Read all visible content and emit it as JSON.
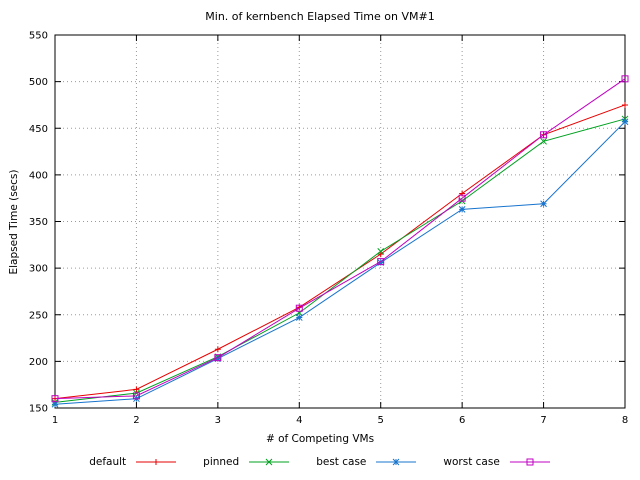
{
  "chart_data": {
    "type": "line",
    "title": "Min. of kernbench Elapsed Time on VM#1",
    "xlabel": "# of Competing VMs",
    "ylabel": "Elapsed Time (secs)",
    "xlim": [
      1,
      8
    ],
    "ylim": [
      150,
      550
    ],
    "xticks": [
      1,
      2,
      3,
      4,
      5,
      6,
      7,
      8
    ],
    "yticks": [
      150,
      200,
      250,
      300,
      350,
      400,
      450,
      500,
      550
    ],
    "grid": true,
    "legend_position": "bottom",
    "x": [
      1,
      2,
      3,
      4,
      5,
      6,
      7,
      8
    ],
    "series": [
      {
        "name": "default",
        "color": "#e60000",
        "marker": "plus",
        "values": [
          160,
          170,
          213,
          258,
          315,
          380,
          443,
          475
        ]
      },
      {
        "name": "pinned",
        "color": "#00a020",
        "marker": "cross",
        "values": [
          156,
          166,
          205,
          252,
          318,
          372,
          436,
          460
        ]
      },
      {
        "name": "best case",
        "color": "#1874cd",
        "marker": "star",
        "values": [
          154,
          160,
          203,
          247,
          306,
          363,
          369,
          457
        ]
      },
      {
        "name": "worst case",
        "color": "#c000c0",
        "marker": "square",
        "values": [
          160,
          163,
          204,
          257,
          307,
          375,
          443,
          503
        ]
      }
    ]
  }
}
